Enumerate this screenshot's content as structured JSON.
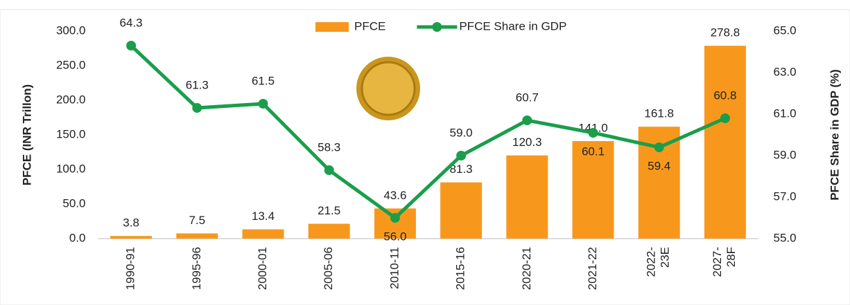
{
  "chart_data": {
    "type": "bar-line",
    "categories": [
      "1990-91",
      "1995-96",
      "2000-01",
      "2005-06",
      "2010-11",
      "2015-16",
      "2020-21",
      "2021-22",
      "2022-23E",
      "2027-28F"
    ],
    "series": [
      {
        "name": "PFCE",
        "type": "bar",
        "color": "#f7981d",
        "axis": "y",
        "values": [
          3.8,
          7.5,
          13.4,
          21.5,
          43.6,
          81.3,
          120.3,
          141.0,
          161.8,
          278.8
        ],
        "value_labels": [
          "3.8",
          "7.5",
          "13.4",
          "21.5",
          "43.6",
          "81.3",
          "120.3",
          "141.0",
          "161.8",
          "278.8"
        ]
      },
      {
        "name": "PFCE Share in GDP",
        "type": "line",
        "color": "#1a9e4b",
        "axis": "y2",
        "values": [
          64.3,
          61.3,
          61.5,
          58.3,
          56.0,
          59.0,
          60.7,
          60.1,
          59.4,
          60.8
        ],
        "value_labels": [
          "64.3",
          "61.3",
          "61.5",
          "58.3",
          "56.0",
          "59.0",
          "60.7",
          "60.1",
          "59.4",
          "60.8"
        ]
      }
    ],
    "y_label": "PFCE (INR Trillon)",
    "y2_label": "PFCE Share in GDP (%)",
    "ylim": [
      0,
      300
    ],
    "yticks": [
      {
        "value": 0,
        "label": "0.0"
      },
      {
        "value": 50,
        "label": "50.0"
      },
      {
        "value": 100,
        "label": "100.0"
      },
      {
        "value": 150,
        "label": "150.0"
      },
      {
        "value": 200,
        "label": "200.0"
      },
      {
        "value": 250,
        "label": "250.0"
      },
      {
        "value": 300,
        "label": "300.0"
      }
    ],
    "y2lim": [
      55,
      65
    ],
    "y2ticks": [
      {
        "value": 55,
        "label": "55.0"
      },
      {
        "value": 57,
        "label": "57.0"
      },
      {
        "value": 59,
        "label": "59.0"
      },
      {
        "value": 61,
        "label": "61.0"
      },
      {
        "value": 63,
        "label": "63.0"
      },
      {
        "value": 65,
        "label": "65.0"
      }
    ],
    "legend": "top"
  }
}
